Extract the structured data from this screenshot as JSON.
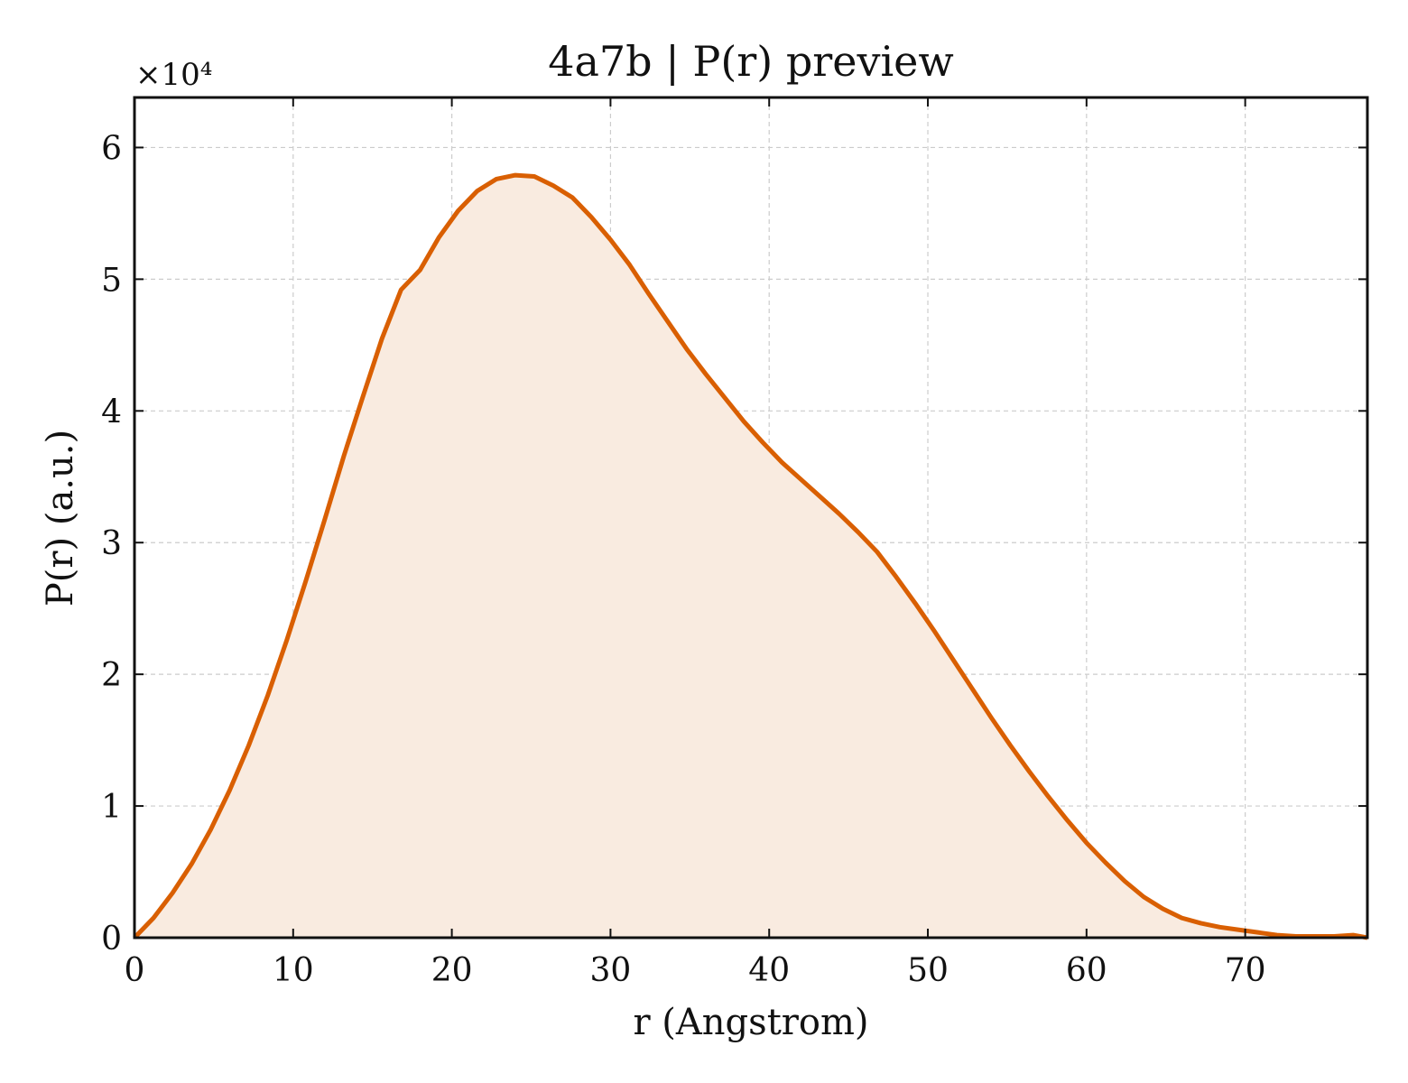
{
  "chart_data": {
    "type": "area",
    "title": "4a7b | P(r) preview",
    "xlabel": "r (Angstrom)",
    "ylabel": "P(r) (a.u.)",
    "y_multiplier_label": "×10⁴",
    "xlim": [
      0,
      77.7
    ],
    "ylim": [
      0,
      6.38
    ],
    "x_ticks": [
      0,
      10,
      20,
      30,
      40,
      50,
      60,
      70
    ],
    "y_ticks": [
      0,
      1,
      2,
      3,
      4,
      5,
      6
    ],
    "grid": true,
    "line_color": "#d95f02",
    "fill_color": "#f9ebe0",
    "series": [
      {
        "x": [
          0,
          1.2,
          2.4,
          3.6,
          4.8,
          6.0,
          7.2,
          8.4,
          9.6,
          10.8,
          12.0,
          13.2,
          14.4,
          15.6,
          16.8,
          18.0,
          19.2,
          20.4,
          21.6,
          22.8,
          24.0,
          25.2,
          26.4,
          27.6,
          28.8,
          30.0,
          31.2,
          32.4,
          33.6,
          34.8,
          36.0,
          37.2,
          38.4,
          39.6,
          40.8,
          42.0,
          43.2,
          44.4,
          45.6,
          46.8,
          48.0,
          49.2,
          50.4,
          51.6,
          52.8,
          54.0,
          55.2,
          56.4,
          57.6,
          58.8,
          60.0,
          61.2,
          62.4,
          63.6,
          64.8,
          66.0,
          67.2,
          68.4,
          69.6,
          70.8,
          72.0,
          73.2,
          74.4,
          75.6,
          76.8,
          77.7
        ],
        "y": [
          0,
          0.15,
          0.34,
          0.56,
          0.82,
          1.12,
          1.46,
          1.84,
          2.26,
          2.71,
          3.18,
          3.66,
          4.11,
          4.55,
          4.92,
          5.07,
          5.32,
          5.52,
          5.67,
          5.76,
          5.79,
          5.78,
          5.71,
          5.62,
          5.47,
          5.3,
          5.11,
          4.89,
          4.68,
          4.47,
          4.28,
          4.1,
          3.92,
          3.76,
          3.61,
          3.48,
          3.35,
          3.22,
          3.08,
          2.93,
          2.74,
          2.54,
          2.33,
          2.11,
          1.89,
          1.67,
          1.46,
          1.26,
          1.07,
          0.89,
          0.72,
          0.57,
          0.43,
          0.31,
          0.22,
          0.15,
          0.11,
          0.08,
          0.06,
          0.04,
          0.02,
          0.01,
          0.01,
          0.01,
          0.02,
          0.0
        ]
      }
    ]
  }
}
